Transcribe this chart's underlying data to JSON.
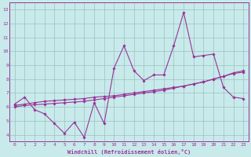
{
  "x_values": [
    0,
    1,
    2,
    3,
    4,
    5,
    6,
    7,
    8,
    9,
    10,
    11,
    12,
    13,
    14,
    15,
    16,
    17,
    18,
    19,
    20,
    21,
    22,
    23
  ],
  "line1_y": [
    6.2,
    6.7,
    5.8,
    5.5,
    4.8,
    4.1,
    4.9,
    3.8,
    6.3,
    4.8,
    8.8,
    10.4,
    8.6,
    7.9,
    8.3,
    8.3,
    10.4,
    12.8,
    9.6,
    9.7,
    9.8,
    7.4,
    6.7,
    6.6
  ],
  "line2_y": [
    6.1,
    6.2,
    6.3,
    6.4,
    6.45,
    6.5,
    6.55,
    6.6,
    6.7,
    6.75,
    6.8,
    6.9,
    7.0,
    7.1,
    7.2,
    7.3,
    7.4,
    7.5,
    7.65,
    7.8,
    8.0,
    8.2,
    8.4,
    8.5
  ],
  "line3_y": [
    6.0,
    6.1,
    6.15,
    6.2,
    6.25,
    6.3,
    6.35,
    6.4,
    6.5,
    6.6,
    6.7,
    6.8,
    6.9,
    7.0,
    7.1,
    7.2,
    7.35,
    7.5,
    7.65,
    7.8,
    8.0,
    8.2,
    8.45,
    8.6
  ],
  "color": "#993399",
  "bg_color": "#c8eaea",
  "grid_color": "#9bbfbf",
  "ylim": [
    3.5,
    13.5
  ],
  "xlim": [
    -0.5,
    23.5
  ],
  "yticks": [
    4,
    5,
    6,
    7,
    8,
    9,
    10,
    11,
    12,
    13
  ],
  "xticks": [
    0,
    1,
    2,
    3,
    4,
    5,
    6,
    7,
    8,
    9,
    10,
    11,
    12,
    13,
    14,
    15,
    16,
    17,
    18,
    19,
    20,
    21,
    22,
    23
  ],
  "xlabel": "Windchill (Refroidissement éolien,°C)",
  "font_color": "#993399",
  "marker": "D",
  "markersize": 1.8,
  "linewidth": 0.8,
  "tick_fontsize": 4.5,
  "xlabel_fontsize": 5.0
}
